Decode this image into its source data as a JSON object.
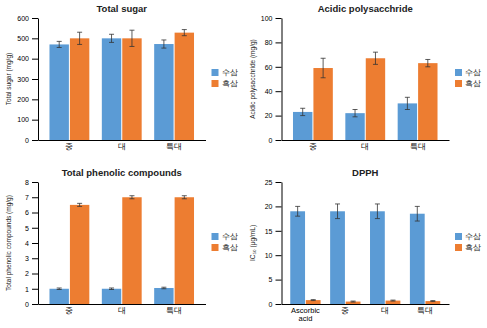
{
  "chart_data": [
    {
      "type": "bar",
      "title": "Total sugar",
      "ylabel": "Total sugar (mg/g)",
      "categories": [
        "중",
        "대",
        "특대"
      ],
      "series": [
        {
          "name": "수삼",
          "color": "#5B9BD5",
          "values": [
            470,
            500,
            472
          ],
          "errors": [
            15,
            20,
            20
          ]
        },
        {
          "name": "흑삼",
          "color": "#ED7D31",
          "values": [
            500,
            500,
            528
          ],
          "errors": [
            30,
            40,
            15
          ]
        }
      ],
      "ylim": [
        0,
        600
      ],
      "yticks": [
        0,
        100,
        200,
        300,
        400,
        500,
        600
      ],
      "grid": false,
      "legend": "right"
    },
    {
      "type": "bar",
      "title": "Acidic polysacchride",
      "ylabel": "Acidic polysacchride (mg/g)",
      "categories": [
        "중",
        "대",
        "특대"
      ],
      "series": [
        {
          "name": "수삼",
          "color": "#5B9BD5",
          "values": [
            23,
            22,
            30
          ],
          "errors": [
            3,
            3,
            5
          ]
        },
        {
          "name": "흑삼",
          "color": "#ED7D31",
          "values": [
            59,
            67,
            63
          ],
          "errors": [
            8,
            5,
            3
          ]
        }
      ],
      "ylim": [
        0,
        100
      ],
      "yticks": [
        0,
        20,
        40,
        60,
        80,
        100
      ],
      "grid": false,
      "legend": "right"
    },
    {
      "type": "bar",
      "title": "Total phenolic compounds",
      "ylabel": "Total phenolic compounds (mg/g)",
      "categories": [
        "중",
        "대",
        "특대"
      ],
      "series": [
        {
          "name": "수삼",
          "color": "#5B9BD5",
          "values": [
            1.0,
            1.0,
            1.05
          ],
          "errors": [
            0.05,
            0.05,
            0.05
          ]
        },
        {
          "name": "흑삼",
          "color": "#ED7D31",
          "values": [
            6.5,
            7.0,
            7.0
          ],
          "errors": [
            0.1,
            0.1,
            0.1
          ]
        }
      ],
      "ylim": [
        0,
        8
      ],
      "yticks": [
        0,
        1,
        2,
        3,
        4,
        5,
        6,
        7,
        8
      ],
      "grid": false,
      "legend": "right"
    },
    {
      "type": "bar",
      "title": "DPPH",
      "ylabel": "IC₅₀ (μg/mL)",
      "categories": [
        "Ascorbic\nacid",
        "중",
        "대",
        "특대"
      ],
      "series": [
        {
          "name": "수삼",
          "color": "#5B9BD5",
          "values": [
            19.0,
            19.0,
            19.0,
            18.5
          ],
          "errors": [
            1.0,
            1.5,
            1.5,
            1.5
          ]
        },
        {
          "name": "흑삼",
          "color": "#ED7D31",
          "values": [
            0.8,
            0.5,
            0.7,
            0.6
          ],
          "errors": [
            0.1,
            0.1,
            0.1,
            0.1
          ]
        }
      ],
      "ylim": [
        0,
        25
      ],
      "yticks": [
        0,
        5,
        10,
        15,
        20,
        25
      ],
      "grid": false,
      "legend": "right"
    }
  ]
}
